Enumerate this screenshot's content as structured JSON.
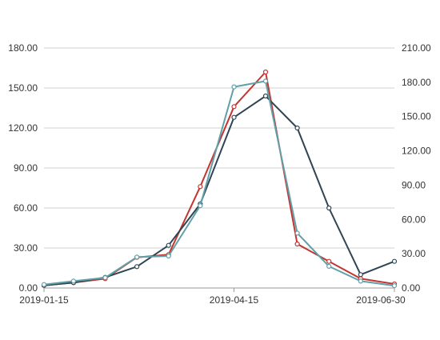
{
  "chart_data": {
    "type": "line",
    "x_axis": {
      "type": "date",
      "min": "2019-01-15",
      "max": "2019-06-30",
      "tick_labels": [
        "2019-01-15",
        "2019-04-15",
        "2019-06-30"
      ]
    },
    "y_axis_left": {
      "min": 0,
      "max": 180,
      "ticks": [
        "0.00",
        "30.00",
        "60.00",
        "90.00",
        "120.00",
        "150.00",
        "180.00"
      ]
    },
    "y_axis_right": {
      "min": 0,
      "max": 210,
      "ticks": [
        "0.00",
        "30.00",
        "60.00",
        "90.00",
        "120.00",
        "150.00",
        "180.00",
        "210.00"
      ]
    },
    "grid": true,
    "legend": "none",
    "series": [
      {
        "axis": "left",
        "color": "#c23531",
        "points": [
          {
            "x": "2019-01-15",
            "y": 2
          },
          {
            "x": "2019-01-29",
            "y": 4
          },
          {
            "x": "2019-02-13",
            "y": 7
          },
          {
            "x": "2019-02-28",
            "y": 23
          },
          {
            "x": "2019-03-15",
            "y": 25
          },
          {
            "x": "2019-03-30",
            "y": 76
          },
          {
            "x": "2019-04-15",
            "y": 136
          },
          {
            "x": "2019-04-30",
            "y": 162
          },
          {
            "x": "2019-05-15",
            "y": 33
          },
          {
            "x": "2019-05-30",
            "y": 20
          },
          {
            "x": "2019-06-14",
            "y": 7
          },
          {
            "x": "2019-06-30",
            "y": 3
          }
        ]
      },
      {
        "axis": "left",
        "color": "#2f4554",
        "points": [
          {
            "x": "2019-01-15",
            "y": 2
          },
          {
            "x": "2019-01-29",
            "y": 4
          },
          {
            "x": "2019-02-13",
            "y": 8
          },
          {
            "x": "2019-02-28",
            "y": 16
          },
          {
            "x": "2019-03-15",
            "y": 32
          },
          {
            "x": "2019-03-30",
            "y": 63
          },
          {
            "x": "2019-04-15",
            "y": 128
          },
          {
            "x": "2019-04-30",
            "y": 144
          },
          {
            "x": "2019-05-15",
            "y": 120
          },
          {
            "x": "2019-05-30",
            "y": 60
          },
          {
            "x": "2019-06-14",
            "y": 10
          },
          {
            "x": "2019-06-30",
            "y": 20
          }
        ]
      },
      {
        "axis": "right",
        "color": "#61a0a8",
        "points": [
          {
            "x": "2019-01-15",
            "y": 3
          },
          {
            "x": "2019-01-29",
            "y": 6
          },
          {
            "x": "2019-02-13",
            "y": 9
          },
          {
            "x": "2019-02-28",
            "y": 27
          },
          {
            "x": "2019-03-15",
            "y": 28
          },
          {
            "x": "2019-03-30",
            "y": 72
          },
          {
            "x": "2019-04-15",
            "y": 176
          },
          {
            "x": "2019-04-30",
            "y": 181
          },
          {
            "x": "2019-05-15",
            "y": 48
          },
          {
            "x": "2019-05-30",
            "y": 19
          },
          {
            "x": "2019-06-14",
            "y": 6
          },
          {
            "x": "2019-06-30",
            "y": 2
          }
        ]
      }
    ]
  }
}
